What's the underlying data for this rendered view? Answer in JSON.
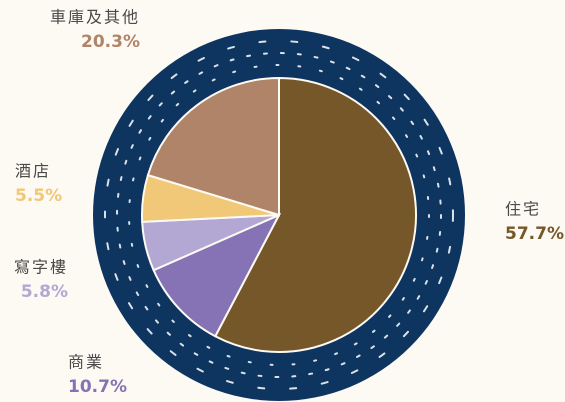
{
  "chart_data": {
    "type": "pie",
    "categories": [
      "住宅",
      "商業",
      "寫字樓",
      "酒店",
      "車庫及其他"
    ],
    "values": [
      57.7,
      10.7,
      5.8,
      5.5,
      20.3
    ],
    "value_labels": [
      "57.7%",
      "10.7%",
      "5.8%",
      "5.5%",
      "20.3%"
    ],
    "colors": [
      "#75572a",
      "#8573b5",
      "#b3a8d4",
      "#f0c877",
      "#b08468"
    ]
  }
}
